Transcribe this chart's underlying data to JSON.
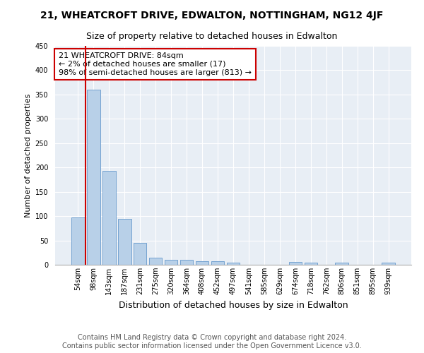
{
  "title": "21, WHEATCROFT DRIVE, EDWALTON, NOTTINGHAM, NG12 4JF",
  "subtitle": "Size of property relative to detached houses in Edwalton",
  "xlabel": "Distribution of detached houses by size in Edwalton",
  "ylabel": "Number of detached properties",
  "categories": [
    "54sqm",
    "98sqm",
    "143sqm",
    "187sqm",
    "231sqm",
    "275sqm",
    "320sqm",
    "364sqm",
    "408sqm",
    "452sqm",
    "497sqm",
    "541sqm",
    "585sqm",
    "629sqm",
    "674sqm",
    "718sqm",
    "762sqm",
    "806sqm",
    "851sqm",
    "895sqm",
    "939sqm"
  ],
  "values": [
    97,
    360,
    193,
    95,
    45,
    15,
    10,
    10,
    7,
    7,
    5,
    0,
    0,
    0,
    6,
    5,
    0,
    5,
    0,
    0,
    5
  ],
  "bar_color": "#b8d0e8",
  "bar_edge_color": "#6699cc",
  "highlight_line_color": "#cc0000",
  "annotation_text": "21 WHEATCROFT DRIVE: 84sqm\n← 2% of detached houses are smaller (17)\n98% of semi-detached houses are larger (813) →",
  "annotation_box_color": "#ffffff",
  "annotation_box_edge": "#cc0000",
  "ylim": [
    0,
    450
  ],
  "yticks": [
    0,
    50,
    100,
    150,
    200,
    250,
    300,
    350,
    400,
    450
  ],
  "background_color": "#e8eef5",
  "grid_color": "#ffffff",
  "footer_text": "Contains HM Land Registry data © Crown copyright and database right 2024.\nContains public sector information licensed under the Open Government Licence v3.0.",
  "title_fontsize": 10,
  "subtitle_fontsize": 9,
  "xlabel_fontsize": 9,
  "ylabel_fontsize": 8,
  "tick_fontsize": 7,
  "annotation_fontsize": 8,
  "footer_fontsize": 7
}
